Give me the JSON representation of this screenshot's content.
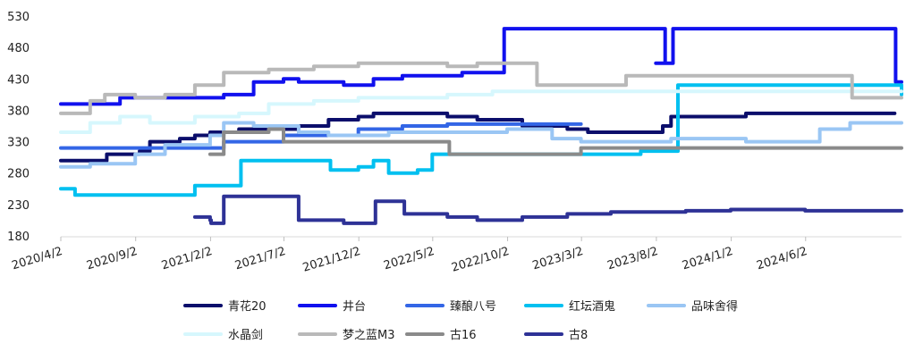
{
  "chart_data": {
    "type": "line",
    "title": "",
    "xlabel": "",
    "ylabel": "",
    "ylim": [
      180,
      530
    ],
    "yticks": [
      180,
      230,
      280,
      330,
      380,
      430,
      480,
      530
    ],
    "xlim": [
      "2020-04-02",
      "2024-12-15"
    ],
    "xticks": [
      "2020/4/2",
      "2020/9/2",
      "2021/2/2",
      "2021/7/2",
      "2021/12/2",
      "2022/5/2",
      "2022/10/2",
      "2023/3/2",
      "2023/8/2",
      "2024/1/2",
      "2024/6/2"
    ],
    "grid": false,
    "legend_position": "bottom",
    "series": [
      {
        "name": "青花20",
        "color": "#0b0e6b",
        "points": [
          [
            "2020-04-02",
            300
          ],
          [
            "2020-07-01",
            300
          ],
          [
            "2020-07-05",
            310
          ],
          [
            "2020-09-10",
            315
          ],
          [
            "2020-10-01",
            330
          ],
          [
            "2020-12-01",
            335
          ],
          [
            "2021-01-01",
            340
          ],
          [
            "2021-02-01",
            345
          ],
          [
            "2021-04-01",
            350
          ],
          [
            "2021-07-01",
            350
          ],
          [
            "2021-08-01",
            355
          ],
          [
            "2021-10-01",
            365
          ],
          [
            "2021-12-01",
            370
          ],
          [
            "2022-01-01",
            375
          ],
          [
            "2022-04-01",
            375
          ],
          [
            "2022-06-01",
            370
          ],
          [
            "2022-08-01",
            365
          ],
          [
            "2022-11-01",
            355
          ],
          [
            "2023-02-01",
            350
          ],
          [
            "2023-03-15",
            345
          ],
          [
            "2023-06-01",
            345
          ],
          [
            "2023-07-20",
            345
          ],
          [
            "2023-08-15",
            355
          ],
          [
            "2023-09-01",
            370
          ],
          [
            "2023-12-01",
            370
          ],
          [
            "2024-02-01",
            375
          ],
          [
            "2024-06-01",
            375
          ],
          [
            "2024-12-01",
            375
          ]
        ]
      },
      {
        "name": "井台",
        "color": "#1111ee",
        "points": [
          [
            "2020-04-02",
            390
          ],
          [
            "2020-07-01",
            390
          ],
          [
            "2020-08-01",
            400
          ],
          [
            "2021-01-01",
            400
          ],
          [
            "2021-03-01",
            405
          ],
          [
            "2021-05-01",
            425
          ],
          [
            "2021-07-01",
            430
          ],
          [
            "2021-08-01",
            425
          ],
          [
            "2021-11-01",
            420
          ],
          [
            "2021-12-01",
            420
          ],
          [
            "2022-01-01",
            430
          ],
          [
            "2022-03-01",
            435
          ],
          [
            "2022-07-01",
            440
          ],
          [
            "2022-09-20",
            440
          ],
          [
            "2022-09-25",
            510
          ],
          [
            "2023-08-10",
            510
          ],
          [
            "2023-08-20",
            455
          ],
          [
            "2023-08-01",
            455
          ],
          [
            "2023-08-25",
            455
          ],
          [
            "2023-09-05",
            510
          ],
          [
            "2024-12-01",
            510
          ],
          [
            "2024-12-03",
            425
          ],
          [
            "2024-12-15",
            425
          ]
        ]
      },
      {
        "name": "臻酿八号",
        "color": "#3366e6",
        "points": [
          [
            "2020-04-02",
            320
          ],
          [
            "2021-02-01",
            320
          ],
          [
            "2021-03-01",
            330
          ],
          [
            "2021-07-01",
            340
          ],
          [
            "2021-12-01",
            350
          ],
          [
            "2022-03-01",
            355
          ],
          [
            "2022-06-01",
            358
          ],
          [
            "2022-12-01",
            358
          ],
          [
            "2023-03-01",
            358
          ]
        ]
      },
      {
        "name": "红坛酒鬼",
        "color": "#00c0f0",
        "points": [
          [
            "2020-04-02",
            255
          ],
          [
            "2020-05-01",
            245
          ],
          [
            "2020-12-01",
            245
          ],
          [
            "2021-01-01",
            260
          ],
          [
            "2021-04-01",
            260
          ],
          [
            "2021-04-05",
            300
          ],
          [
            "2021-10-01",
            300
          ],
          [
            "2021-10-05",
            285
          ],
          [
            "2021-12-01",
            290
          ],
          [
            "2022-01-01",
            300
          ],
          [
            "2022-02-01",
            280
          ],
          [
            "2022-04-01",
            285
          ],
          [
            "2022-05-01",
            310
          ],
          [
            "2022-10-01",
            310
          ],
          [
            "2023-03-01",
            310
          ],
          [
            "2023-07-01",
            315
          ],
          [
            "2023-09-10",
            315
          ],
          [
            "2023-09-15",
            420
          ],
          [
            "2024-12-01",
            420
          ],
          [
            "2024-12-15",
            405
          ]
        ]
      },
      {
        "name": "品味舍得",
        "color": "#9ac6f4",
        "points": [
          [
            "2020-04-02",
            290
          ],
          [
            "2020-06-01",
            295
          ],
          [
            "2020-09-01",
            310
          ],
          [
            "2020-11-01",
            325
          ],
          [
            "2021-02-01",
            340
          ],
          [
            "2021-03-01",
            360
          ],
          [
            "2021-05-01",
            355
          ],
          [
            "2021-08-01",
            345
          ],
          [
            "2021-10-01",
            340
          ],
          [
            "2022-02-01",
            345
          ],
          [
            "2022-06-01",
            345
          ],
          [
            "2022-10-01",
            350
          ],
          [
            "2023-01-01",
            335
          ],
          [
            "2023-03-01",
            330
          ],
          [
            "2023-08-01",
            330
          ],
          [
            "2023-09-01",
            335
          ],
          [
            "2023-12-01",
            335
          ],
          [
            "2024-02-01",
            330
          ],
          [
            "2024-05-01",
            330
          ],
          [
            "2024-07-01",
            350
          ],
          [
            "2024-09-01",
            360
          ],
          [
            "2024-12-15",
            360
          ]
        ]
      },
      {
        "name": "水晶剑",
        "color": "#d6f7fd",
        "points": [
          [
            "2020-04-02",
            345
          ],
          [
            "2020-06-01",
            360
          ],
          [
            "2020-08-01",
            370
          ],
          [
            "2020-10-01",
            360
          ],
          [
            "2021-01-01",
            370
          ],
          [
            "2021-04-01",
            375
          ],
          [
            "2021-06-01",
            390
          ],
          [
            "2021-09-01",
            395
          ],
          [
            "2021-12-01",
            400
          ],
          [
            "2022-03-01",
            400
          ],
          [
            "2022-06-01",
            405
          ],
          [
            "2022-09-01",
            410
          ],
          [
            "2022-12-01",
            410
          ],
          [
            "2023-03-01",
            410
          ],
          [
            "2023-08-01",
            410
          ],
          [
            "2023-12-01",
            410
          ],
          [
            "2024-06-01",
            410
          ],
          [
            "2024-12-15",
            410
          ]
        ]
      },
      {
        "name": "梦之蓝M3",
        "color": "#b9b9b9",
        "points": [
          [
            "2020-04-02",
            375
          ],
          [
            "2020-06-01",
            395
          ],
          [
            "2020-07-01",
            405
          ],
          [
            "2020-09-01",
            400
          ],
          [
            "2020-11-01",
            405
          ],
          [
            "2021-01-01",
            420
          ],
          [
            "2021-03-01",
            440
          ],
          [
            "2021-06-01",
            445
          ],
          [
            "2021-09-01",
            450
          ],
          [
            "2021-12-01",
            455
          ],
          [
            "2022-03-01",
            455
          ],
          [
            "2022-06-01",
            450
          ],
          [
            "2022-08-01",
            455
          ],
          [
            "2022-11-01",
            455
          ],
          [
            "2022-12-01",
            420
          ],
          [
            "2023-03-01",
            420
          ],
          [
            "2023-05-01",
            420
          ],
          [
            "2023-06-01",
            435
          ],
          [
            "2024-01-01",
            435
          ],
          [
            "2024-09-01",
            435
          ],
          [
            "2024-09-05",
            400
          ],
          [
            "2024-12-15",
            400
          ]
        ]
      },
      {
        "name": "古16",
        "color": "#8a8a8a",
        "points": [
          [
            "2021-02-01",
            310
          ],
          [
            "2021-03-01",
            345
          ],
          [
            "2021-06-01",
            350
          ],
          [
            "2021-07-01",
            330
          ],
          [
            "2021-09-01",
            330
          ],
          [
            "2022-06-01",
            330
          ],
          [
            "2022-06-05",
            310
          ],
          [
            "2022-12-01",
            310
          ],
          [
            "2023-01-01",
            310
          ],
          [
            "2023-03-01",
            320
          ],
          [
            "2024-12-15",
            320
          ]
        ]
      },
      {
        "name": "古8",
        "color": "#2e3296",
        "points": [
          [
            "2021-01-01",
            210
          ],
          [
            "2021-02-01",
            205
          ],
          [
            "2021-02-03",
            200
          ],
          [
            "2021-03-01",
            243
          ],
          [
            "2021-07-01",
            243
          ],
          [
            "2021-08-01",
            205
          ],
          [
            "2021-11-01",
            200
          ],
          [
            "2022-01-01",
            200
          ],
          [
            "2022-01-05",
            235
          ],
          [
            "2022-03-01",
            235
          ],
          [
            "2022-03-05",
            215
          ],
          [
            "2022-06-01",
            210
          ],
          [
            "2022-08-01",
            205
          ],
          [
            "2022-11-01",
            210
          ],
          [
            "2023-02-01",
            215
          ],
          [
            "2023-05-01",
            218
          ],
          [
            "2023-10-01",
            220
          ],
          [
            "2024-01-01",
            222
          ],
          [
            "2024-06-01",
            220
          ],
          [
            "2024-12-15",
            220
          ]
        ]
      }
    ]
  }
}
